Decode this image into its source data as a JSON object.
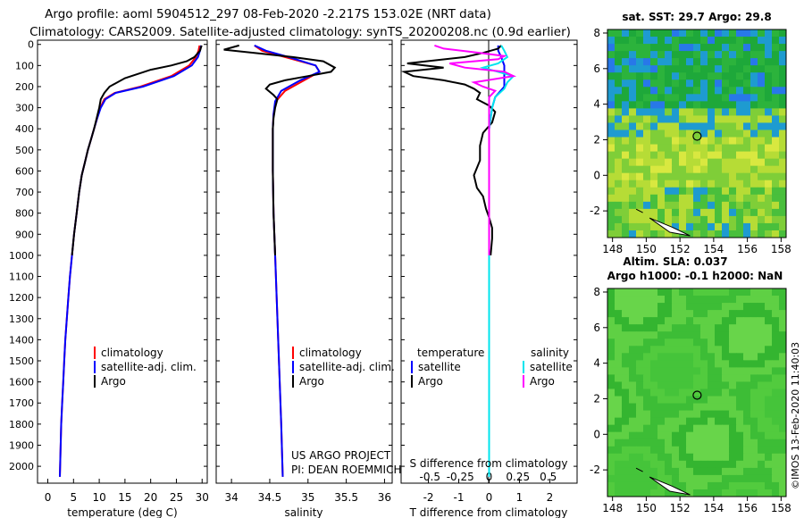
{
  "title_line1": "Argo profile: aoml 5904512_297 08-Feb-2020 -2.217S 153.02E (NRT data)",
  "title_line2": "Climatology: CARS2009. Satellite-adjusted climatology: synTS_20200208.nc (0.9d earlier)",
  "credit_lines": [
    "US ARGO PROJECT",
    "PI: DEAN ROEMMICH"
  ],
  "imos_stamp": "©IMOS 13-Feb-2020 11:40:03",
  "colors": {
    "climatology": "#ff0000",
    "satellite": "#0000ff",
    "argo": "#000000",
    "sat_salinity": "#00e5ee",
    "argo_salinity": "#ff00ff"
  },
  "chart_data": [
    {
      "type": "line",
      "id": "temperature",
      "xlabel": "temperature (deg C)",
      "xlim": [
        -2,
        31
      ],
      "ylim": [
        2080,
        -20
      ],
      "xticks": [
        0,
        5,
        10,
        15,
        20,
        25,
        30
      ],
      "yticks": [
        0,
        100,
        200,
        300,
        400,
        500,
        600,
        700,
        800,
        900,
        1000,
        1100,
        1200,
        1300,
        1400,
        1500,
        1600,
        1700,
        1800,
        1900,
        2000
      ],
      "legend": {
        "position": "bottom-right",
        "items": [
          "climatology",
          "satellite-adj. clim.",
          "Argo"
        ]
      },
      "series": [
        {
          "name": "climatology",
          "color": "#ff0000",
          "points": [
            [
              29.5,
              5
            ],
            [
              29.3,
              30
            ],
            [
              28.8,
              60
            ],
            [
              27.5,
              100
            ],
            [
              24,
              150
            ],
            [
              18,
              200
            ],
            [
              13,
              230
            ],
            [
              11,
              260
            ],
            [
              10.2,
              300
            ],
            [
              9.6,
              350
            ],
            [
              9,
              400
            ],
            [
              8.4,
              450
            ],
            [
              7.8,
              500
            ],
            [
              7.2,
              560
            ],
            [
              6.6,
              620
            ],
            [
              6.1,
              700
            ],
            [
              5.6,
              800
            ],
            [
              5.1,
              900
            ],
            [
              4.7,
              1000
            ],
            [
              4.3,
              1100
            ],
            [
              4.0,
              1200
            ],
            [
              3.7,
              1300
            ],
            [
              3.4,
              1400
            ],
            [
              3.2,
              1500
            ],
            [
              3.0,
              1600
            ],
            [
              2.8,
              1700
            ],
            [
              2.6,
              1800
            ],
            [
              2.5,
              1900
            ],
            [
              2.35,
              2050
            ]
          ]
        },
        {
          "name": "satellite-adj. clim.",
          "color": "#0000ff",
          "points": [
            [
              29.8,
              5
            ],
            [
              29.6,
              30
            ],
            [
              29.2,
              60
            ],
            [
              28,
              100
            ],
            [
              24.5,
              150
            ],
            [
              18.5,
              200
            ],
            [
              13.2,
              230
            ],
            [
              11.2,
              260
            ],
            [
              10.3,
              300
            ],
            [
              9.6,
              350
            ],
            [
              9,
              400
            ],
            [
              8.4,
              450
            ],
            [
              7.8,
              500
            ],
            [
              7.2,
              560
            ],
            [
              6.6,
              620
            ],
            [
              6.1,
              700
            ],
            [
              5.6,
              800
            ],
            [
              5.1,
              900
            ],
            [
              4.7,
              1000
            ],
            [
              4.3,
              1100
            ],
            [
              4.0,
              1200
            ],
            [
              3.7,
              1300
            ],
            [
              3.4,
              1400
            ],
            [
              3.2,
              1500
            ],
            [
              3.0,
              1600
            ],
            [
              2.8,
              1700
            ],
            [
              2.6,
              1800
            ],
            [
              2.5,
              1900
            ],
            [
              2.35,
              2050
            ]
          ]
        },
        {
          "name": "Argo",
          "color": "#000000",
          "points": [
            [
              29.9,
              5
            ],
            [
              29.6,
              30
            ],
            [
              28.5,
              60
            ],
            [
              27,
              80
            ],
            [
              24,
              100
            ],
            [
              20,
              120
            ],
            [
              15,
              160
            ],
            [
              12,
              200
            ],
            [
              11,
              230
            ],
            [
              10.3,
              260
            ],
            [
              10,
              300
            ],
            [
              9.5,
              350
            ],
            [
              9,
              400
            ],
            [
              8.4,
              450
            ],
            [
              7.8,
              500
            ],
            [
              7.2,
              560
            ],
            [
              6.6,
              620
            ],
            [
              6.1,
              700
            ],
            [
              5.6,
              800
            ],
            [
              5.1,
              900
            ],
            [
              4.7,
              1000
            ]
          ]
        }
      ]
    },
    {
      "type": "line",
      "id": "salinity",
      "xlabel": "salinity",
      "xlim": [
        33.8,
        36.1
      ],
      "ylim": [
        2080,
        -20
      ],
      "xticks": [
        34,
        34.5,
        35,
        35.5,
        36
      ],
      "legend": {
        "position": "bottom-right",
        "items": [
          "climatology",
          "satellite-adj. clim.",
          "Argo"
        ]
      },
      "series": [
        {
          "name": "climatology",
          "color": "#ff0000",
          "points": [
            [
              34.3,
              5
            ],
            [
              34.4,
              30
            ],
            [
              34.7,
              60
            ],
            [
              35.1,
              100
            ],
            [
              35.15,
              130
            ],
            [
              34.95,
              170
            ],
            [
              34.7,
              220
            ],
            [
              34.58,
              270
            ],
            [
              34.55,
              330
            ],
            [
              34.54,
              400
            ],
            [
              34.54,
              600
            ],
            [
              34.55,
              800
            ],
            [
              34.57,
              1000
            ],
            [
              34.59,
              1200
            ],
            [
              34.61,
              1400
            ],
            [
              34.63,
              1600
            ],
            [
              34.65,
              1800
            ],
            [
              34.67,
              2050
            ]
          ]
        },
        {
          "name": "satellite-adj. clim.",
          "color": "#0000ff",
          "points": [
            [
              34.3,
              5
            ],
            [
              34.45,
              30
            ],
            [
              34.75,
              60
            ],
            [
              35.1,
              100
            ],
            [
              35.15,
              130
            ],
            [
              34.9,
              170
            ],
            [
              34.65,
              220
            ],
            [
              34.57,
              270
            ],
            [
              34.55,
              330
            ],
            [
              34.54,
              400
            ],
            [
              34.54,
              600
            ],
            [
              34.55,
              800
            ],
            [
              34.57,
              1000
            ],
            [
              34.59,
              1200
            ],
            [
              34.61,
              1400
            ],
            [
              34.63,
              1600
            ],
            [
              34.65,
              1800
            ],
            [
              34.67,
              2050
            ]
          ]
        },
        {
          "name": "Argo",
          "color": "#000000",
          "points": [
            [
              34.1,
              5
            ],
            [
              33.9,
              25
            ],
            [
              34.3,
              40
            ],
            [
              34.8,
              60
            ],
            [
              35.2,
              80
            ],
            [
              35.35,
              110
            ],
            [
              35.3,
              130
            ],
            [
              35.0,
              150
            ],
            [
              34.7,
              170
            ],
            [
              34.5,
              190
            ],
            [
              34.45,
              210
            ],
            [
              34.55,
              240
            ],
            [
              34.6,
              260
            ],
            [
              34.57,
              300
            ],
            [
              34.55,
              350
            ],
            [
              34.54,
              400
            ],
            [
              34.54,
              600
            ],
            [
              34.55,
              800
            ],
            [
              34.57,
              1000
            ]
          ]
        }
      ]
    },
    {
      "type": "line",
      "id": "difference",
      "xlabel": "T difference from climatology",
      "xlabel_top": "S difference from climatology",
      "xlim": [
        -2.9,
        2.9
      ],
      "ylim": [
        2080,
        -20
      ],
      "xticks": [
        -2,
        -1,
        0,
        1,
        2
      ],
      "xticks_salinity": [
        -0.5,
        -0.25,
        0,
        0.25,
        0.5
      ],
      "legend_left": {
        "title": "temperature",
        "items": [
          "satellite",
          "Argo"
        ]
      },
      "legend_right": {
        "title": "salinity",
        "items": [
          "satellite",
          "Argo"
        ]
      },
      "series": [
        {
          "name": "temperature satellite",
          "color": "#0000ff",
          "points": [
            [
              0.3,
              5
            ],
            [
              0.3,
              30
            ],
            [
              0.4,
              60
            ],
            [
              0.5,
              100
            ],
            [
              0.5,
              150
            ],
            [
              0.5,
              200
            ],
            [
              0.2,
              250
            ],
            [
              0.1,
              300
            ],
            [
              0,
              400
            ],
            [
              0,
              2050
            ]
          ]
        },
        {
          "name": "temperature Argo",
          "color": "#000000",
          "points": [
            [
              0.4,
              5
            ],
            [
              0.3,
              20
            ],
            [
              -0.2,
              40
            ],
            [
              -0.8,
              60
            ],
            [
              -2.7,
              90
            ],
            [
              -1.5,
              110
            ],
            [
              -2.8,
              130
            ],
            [
              -2.5,
              150
            ],
            [
              -1.5,
              170
            ],
            [
              -0.8,
              190
            ],
            [
              -0.5,
              210
            ],
            [
              -0.3,
              230
            ],
            [
              -0.4,
              260
            ],
            [
              0,
              290
            ],
            [
              0.2,
              320
            ],
            [
              0.1,
              370
            ],
            [
              -0.2,
              420
            ],
            [
              -0.3,
              480
            ],
            [
              -0.3,
              550
            ],
            [
              -0.5,
              620
            ],
            [
              -0.4,
              680
            ],
            [
              -0.2,
              720
            ],
            [
              -0.1,
              780
            ],
            [
              0,
              820
            ],
            [
              0.1,
              870
            ],
            [
              0.1,
              920
            ],
            [
              0.05,
              1000
            ]
          ]
        },
        {
          "name": "salinity satellite",
          "color": "#00e5ee",
          "points": [
            [
              0.4,
              5
            ],
            [
              0.5,
              30
            ],
            [
              0.6,
              60
            ],
            [
              0.3,
              90
            ],
            [
              -0.2,
              110
            ],
            [
              0.8,
              150
            ],
            [
              0.6,
              180
            ],
            [
              0.5,
              210
            ],
            [
              0.2,
              250
            ],
            [
              0.1,
              300
            ],
            [
              0,
              400
            ],
            [
              0,
              2050
            ]
          ]
        },
        {
          "name": "salinity Argo",
          "color": "#ff00ff",
          "points": [
            [
              -1.8,
              5
            ],
            [
              -1.5,
              20
            ],
            [
              -0.3,
              40
            ],
            [
              0.5,
              55
            ],
            [
              0.3,
              70
            ],
            [
              -1.3,
              90
            ],
            [
              -0.8,
              110
            ],
            [
              0.5,
              130
            ],
            [
              0.8,
              150
            ],
            [
              -0.5,
              180
            ],
            [
              -0.2,
              200
            ],
            [
              0.2,
              220
            ],
            [
              0,
              250
            ],
            [
              0,
              600
            ],
            [
              0,
              1000
            ]
          ]
        }
      ]
    },
    {
      "type": "heatmap",
      "id": "sst-map",
      "title": "sat. SST: 29.7 Argo: 29.8",
      "xlim": [
        147.7,
        158.3
      ],
      "ylim": [
        -3.5,
        8.2
      ],
      "xticks": [
        148,
        150,
        152,
        154,
        156,
        158
      ],
      "yticks": [
        -2,
        0,
        2,
        4,
        6,
        8
      ],
      "marker": [
        153.02,
        2.2
      ]
    },
    {
      "type": "heatmap",
      "id": "sla-map",
      "title": "Altim. SLA: 0.037",
      "subtitle": "Argo h1000: -0.1 h2000: NaN",
      "xlim": [
        147.7,
        158.3
      ],
      "ylim": [
        -3.5,
        8.2
      ],
      "xticks": [
        148,
        150,
        152,
        154,
        156,
        158
      ],
      "yticks": [
        -2,
        0,
        2,
        4,
        6,
        8
      ],
      "marker": [
        153.02,
        2.2
      ]
    }
  ]
}
